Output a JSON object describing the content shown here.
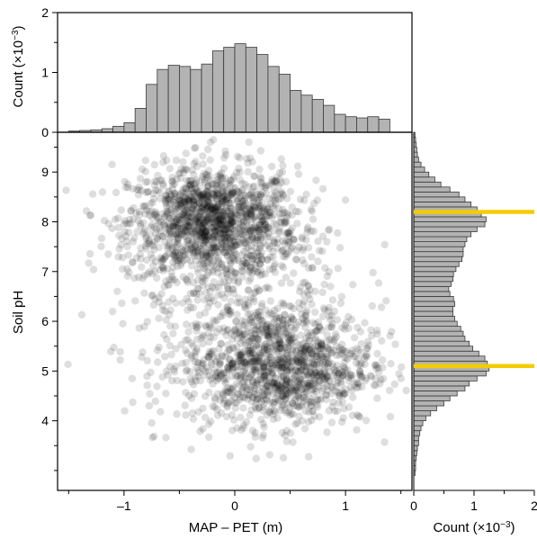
{
  "colors": {
    "points": "#000000",
    "histogram_fill": "#b3b3b3",
    "histogram_edge": "#3a3a3a",
    "marker_lines": "#f5cc00"
  },
  "chart_data": [
    {
      "type": "scatter",
      "xlabel": "MAP – PET (m)",
      "ylabel": "Soil pH",
      "xlim": [
        -1.6,
        1.6
      ],
      "ylim": [
        2.6,
        9.8
      ],
      "xticks": [
        -1,
        0,
        1
      ],
      "xtick_labels": [
        "–1",
        "0",
        "1"
      ],
      "yticks": [
        4,
        5,
        6,
        7,
        8,
        9
      ],
      "ytick_labels": [
        "4",
        "5",
        "6",
        "7",
        "8",
        "9"
      ],
      "grid": false,
      "point_color": "#000000",
      "point_alpha": 0.13,
      "clusters": [
        {
          "x_center": -0.2,
          "y_center": 8.0,
          "x_sd": 0.38,
          "y_sd": 0.55,
          "share": 0.45
        },
        {
          "x_center": 0.4,
          "y_center": 5.1,
          "x_sd": 0.42,
          "y_sd": 0.6,
          "share": 0.4
        },
        {
          "x_center": 0.0,
          "y_center": 6.5,
          "x_sd": 0.55,
          "y_sd": 1.2,
          "share": 0.15
        }
      ]
    },
    {
      "type": "bar",
      "orientation": "vertical",
      "xlabel": "",
      "ylabel": "Count (×10",
      "ylabel_exp": "−3",
      "ylabel_close": ")",
      "xlim": [
        -1.6,
        1.6
      ],
      "ylim": [
        0,
        2
      ],
      "yticks": [
        0,
        1,
        2
      ],
      "ytick_labels": [
        "0",
        "1",
        "2"
      ],
      "bin_width": 0.1,
      "bin_centers": [
        -1.45,
        -1.35,
        -1.25,
        -1.15,
        -1.05,
        -0.95,
        -0.85,
        -0.75,
        -0.65,
        -0.55,
        -0.45,
        -0.35,
        -0.25,
        -0.15,
        -0.05,
        0.05,
        0.15,
        0.25,
        0.35,
        0.45,
        0.55,
        0.65,
        0.75,
        0.85,
        0.95,
        1.05,
        1.15,
        1.25,
        1.35
      ],
      "values": [
        0.02,
        0.03,
        0.04,
        0.06,
        0.1,
        0.16,
        0.4,
        0.8,
        1.05,
        1.12,
        1.1,
        1.05,
        1.14,
        1.36,
        1.42,
        1.48,
        1.42,
        1.3,
        1.1,
        0.97,
        0.7,
        0.62,
        0.55,
        0.45,
        0.3,
        0.26,
        0.24,
        0.26,
        0.22
      ]
    },
    {
      "type": "bar",
      "orientation": "horizontal",
      "xlabel": "Count (×10",
      "xlabel_exp": "−3",
      "xlabel_close": ")",
      "xlim": [
        0,
        2
      ],
      "xticks": [
        0,
        1,
        2
      ],
      "xtick_labels": [
        "0",
        "1",
        "2"
      ],
      "ylim": [
        2.6,
        9.8
      ],
      "bin_width": 0.1,
      "bin_centers": [
        2.95,
        3.05,
        3.15,
        3.25,
        3.35,
        3.45,
        3.55,
        3.65,
        3.75,
        3.85,
        3.95,
        4.05,
        4.15,
        4.25,
        4.35,
        4.45,
        4.55,
        4.65,
        4.75,
        4.85,
        4.95,
        5.05,
        5.15,
        5.25,
        5.35,
        5.45,
        5.55,
        5.65,
        5.75,
        5.85,
        5.95,
        6.05,
        6.15,
        6.25,
        6.35,
        6.45,
        6.55,
        6.65,
        6.75,
        6.85,
        6.95,
        7.05,
        7.15,
        7.25,
        7.35,
        7.45,
        7.55,
        7.65,
        7.75,
        7.85,
        7.95,
        8.05,
        8.15,
        8.25,
        8.35,
        8.45,
        8.55,
        8.65,
        8.75,
        8.85,
        8.95,
        9.05,
        9.15,
        9.25,
        9.35,
        9.45,
        9.55,
        9.65,
        9.75
      ],
      "values": [
        0.02,
        0.03,
        0.03,
        0.04,
        0.05,
        0.06,
        0.08,
        0.08,
        0.1,
        0.12,
        0.15,
        0.2,
        0.28,
        0.38,
        0.5,
        0.6,
        0.72,
        0.85,
        0.92,
        1.05,
        1.2,
        1.25,
        1.22,
        1.18,
        1.08,
        0.98,
        0.92,
        0.85,
        0.82,
        0.78,
        0.72,
        0.68,
        0.65,
        0.65,
        0.68,
        0.66,
        0.6,
        0.58,
        0.62,
        0.65,
        0.66,
        0.7,
        0.75,
        0.8,
        0.82,
        0.82,
        0.85,
        0.88,
        0.95,
        1.05,
        1.18,
        1.2,
        1.12,
        1.05,
        0.95,
        0.85,
        0.75,
        0.6,
        0.45,
        0.35,
        0.25,
        0.18,
        0.12,
        0.08,
        0.06,
        0.05,
        0.04,
        0.03,
        0.02
      ],
      "highlight_y": [
        8.2,
        5.1
      ]
    }
  ]
}
